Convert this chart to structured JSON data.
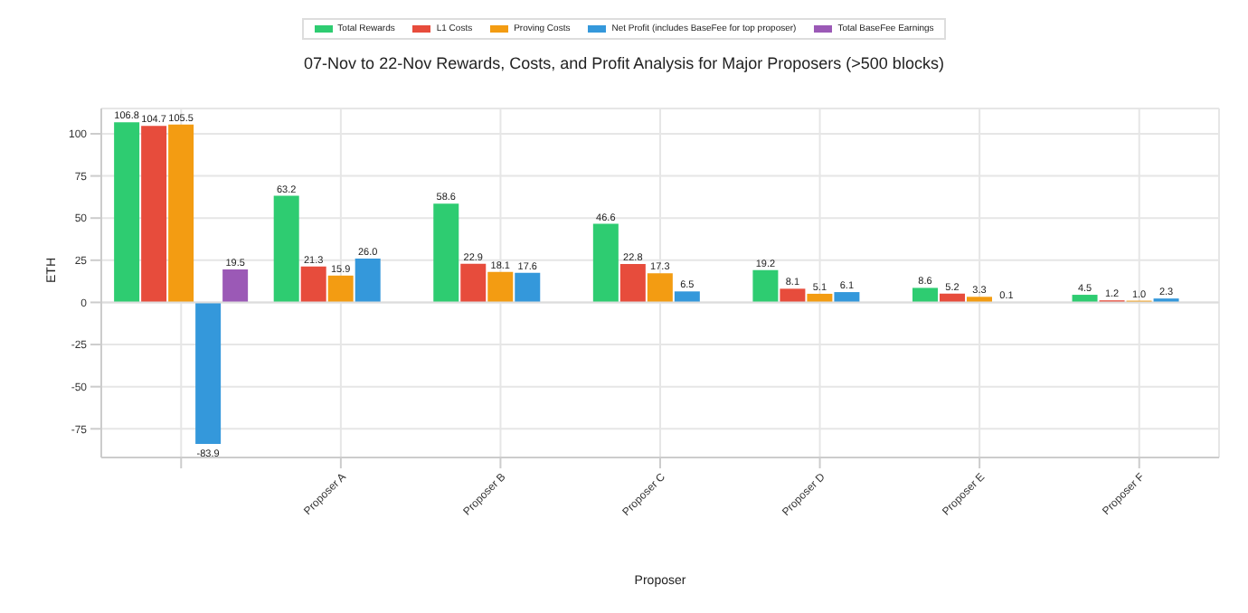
{
  "chart_data": {
    "type": "bar",
    "title": "07-Nov to 22-Nov Rewards, Costs, and Profit Analysis for Major Proposers (>500 blocks)",
    "xlabel": "Proposer",
    "ylabel": "ETH",
    "categories": [
      null,
      "Proposer A",
      "Proposer B",
      "Proposer C",
      "Proposer D",
      "Proposer E",
      "Proposer F"
    ],
    "series": [
      {
        "name": "Total Rewards",
        "color": "#2ecc71",
        "values": [
          106.8,
          63.2,
          58.6,
          46.6,
          19.2,
          8.6,
          4.5
        ],
        "value_labels": [
          "106.8",
          "63.2",
          "58.6",
          "46.6",
          "19.2",
          "8.6",
          "4.5"
        ]
      },
      {
        "name": "L1 Costs",
        "color": "#e74c3c",
        "values": [
          104.7,
          21.3,
          22.9,
          22.8,
          8.1,
          5.2,
          1.2
        ],
        "value_labels": [
          "104.7",
          "21.3",
          "22.9",
          "22.8",
          "8.1",
          "5.2",
          "1.2"
        ]
      },
      {
        "name": "Proving Costs",
        "color": "#f39c12",
        "values": [
          105.5,
          15.9,
          18.1,
          17.3,
          5.1,
          3.3,
          1.0
        ],
        "value_labels": [
          "105.5",
          "15.9",
          "18.1",
          "17.3",
          "5.1",
          "3.3",
          "1.0"
        ]
      },
      {
        "name": "Net Profit (includes BaseFee for top proposer)",
        "color": "#3498db",
        "values": [
          -83.9,
          26.0,
          17.6,
          6.5,
          6.1,
          0.1,
          2.3
        ],
        "value_labels": [
          "-83.9",
          "26.0",
          "17.6",
          "6.5",
          "6.1",
          "0.1",
          "2.3"
        ]
      },
      {
        "name": "Total BaseFee Earnings",
        "color": "#9b59b6",
        "values": [
          19.5,
          null,
          null,
          null,
          null,
          null,
          null
        ],
        "value_labels": [
          "19.5",
          null,
          null,
          null,
          null,
          null,
          null
        ]
      }
    ],
    "ylim": [
      -92,
      115
    ],
    "yticks": [
      -75,
      -50,
      -25,
      0,
      25,
      50,
      75,
      100
    ],
    "grid": true,
    "legend": "top"
  }
}
